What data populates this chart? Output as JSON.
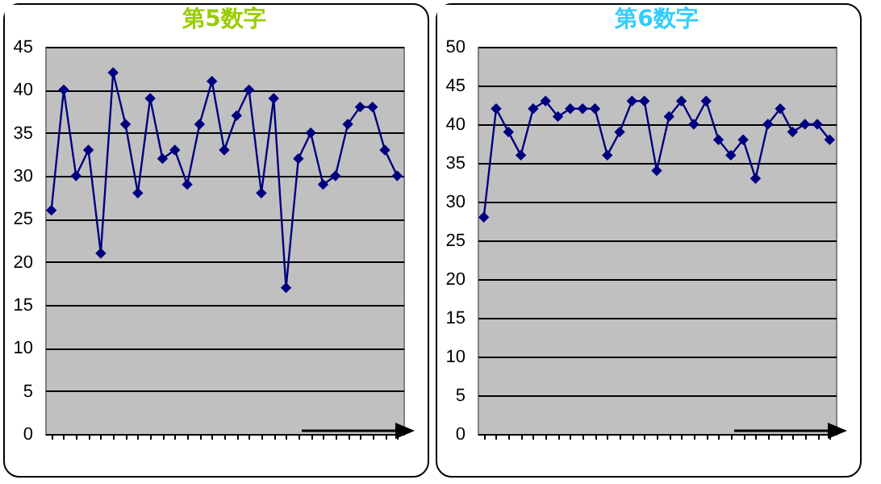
{
  "chart_data": [
    {
      "type": "line",
      "title": "第5数字",
      "categories": [
        null,
        null,
        null,
        null,
        null,
        null,
        null,
        null,
        null,
        null,
        null,
        null,
        null,
        null,
        null,
        null,
        null,
        null,
        null,
        null,
        null,
        null,
        null,
        null,
        null,
        null,
        null,
        null,
        null
      ],
      "series": [
        {
          "color": "#000080",
          "values": [
            26,
            40,
            30,
            33,
            21,
            42,
            36,
            28,
            39,
            32,
            33,
            29,
            36,
            41,
            33,
            37,
            40,
            28,
            39,
            17,
            32,
            35,
            29,
            30,
            36,
            38,
            38,
            33,
            30
          ]
        }
      ],
      "ylim": [
        0,
        45
      ],
      "yticks": [
        0,
        5,
        10,
        15,
        20,
        25,
        30,
        35,
        40,
        45
      ],
      "grid": "y",
      "marker": "diamond",
      "tick_labels": "y"
    },
    {
      "type": "line",
      "title": "第6数字",
      "categories": [
        null,
        null,
        null,
        null,
        null,
        null,
        null,
        null,
        null,
        null,
        null,
        null,
        null,
        null,
        null,
        null,
        null,
        null,
        null,
        null,
        null,
        null,
        null,
        null,
        null,
        null,
        null,
        null,
        null
      ],
      "series": [
        {
          "color": "#000080",
          "values": [
            28,
            42,
            39,
            36,
            42,
            43,
            41,
            42,
            42,
            42,
            36,
            39,
            43,
            43,
            34,
            41,
            43,
            40,
            43,
            38,
            36,
            38,
            33,
            40,
            42,
            39,
            40,
            40,
            38
          ]
        }
      ],
      "ylim": [
        0,
        50
      ],
      "yticks": [
        0,
        5,
        10,
        15,
        20,
        25,
        30,
        35,
        40,
        45,
        50
      ],
      "grid": "y",
      "marker": "diamond",
      "tick_labels": "y"
    }
  ]
}
